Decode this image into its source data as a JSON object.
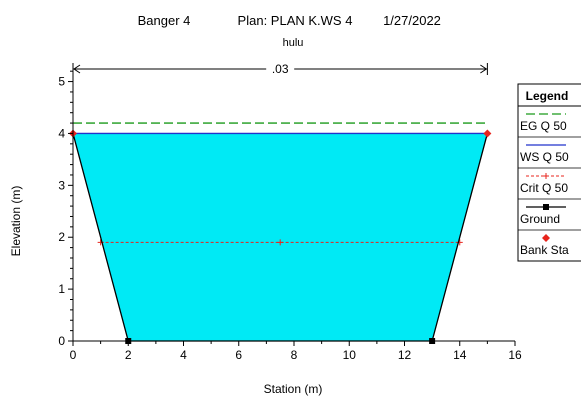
{
  "chart_data": {
    "type": "area",
    "header": {
      "project": "Banger 4",
      "plan": "Plan: PLAN K.WS 4",
      "date": "1/27/2022",
      "subtitle": "hulu"
    },
    "xlabel": "Station (m)",
    "ylabel": "Elevation (m)",
    "xlim": [
      0,
      16
    ],
    "ylim": [
      0,
      5.3
    ],
    "xticks": [
      0,
      2,
      4,
      6,
      8,
      10,
      12,
      14,
      16
    ],
    "yticks": [
      0,
      1,
      2,
      3,
      4,
      5
    ],
    "xtick_labels": [
      "0",
      "2",
      "4",
      "6",
      "8",
      "10",
      "12",
      "14",
      "16"
    ],
    "ytick_labels": [
      "0",
      "1",
      "2",
      "3",
      "4",
      "5"
    ],
    "grid": false,
    "manning": {
      "label": ".03",
      "x_start": 0,
      "x_end": 15
    },
    "ground": {
      "x": [
        0,
        2,
        13,
        15
      ],
      "y": [
        4,
        0,
        0,
        4
      ]
    },
    "bank_stations": {
      "x": [
        0,
        15
      ],
      "y": [
        4,
        4
      ]
    },
    "ws_elevation": 4.0,
    "eg_elevation": 4.2,
    "crit_elevation": 1.9,
    "crit_extent": [
      1.0,
      14.0
    ],
    "crit_marker_x": [
      1.0,
      7.5,
      14.0
    ],
    "series": [
      {
        "name": "EG Q 50",
        "style": "dashed",
        "color": "#1a9a1a"
      },
      {
        "name": "WS Q 50",
        "style": "solid",
        "color": "#2233cc"
      },
      {
        "name": "Crit Q 50",
        "style": "dotted",
        "color": "#e8241c"
      },
      {
        "name": "Ground",
        "style": "solid-square",
        "color": "#000000"
      },
      {
        "name": "Bank Sta",
        "style": "diamond",
        "color": "#e8241c"
      }
    ],
    "legend_title": "Legend",
    "legend_position": "right",
    "colors": {
      "water": "#00eaf5",
      "eg": "#1a9a1a",
      "ws": "#2233cc",
      "crit": "#e8241c",
      "ground": "#000000",
      "bank": "#e8241c"
    }
  }
}
